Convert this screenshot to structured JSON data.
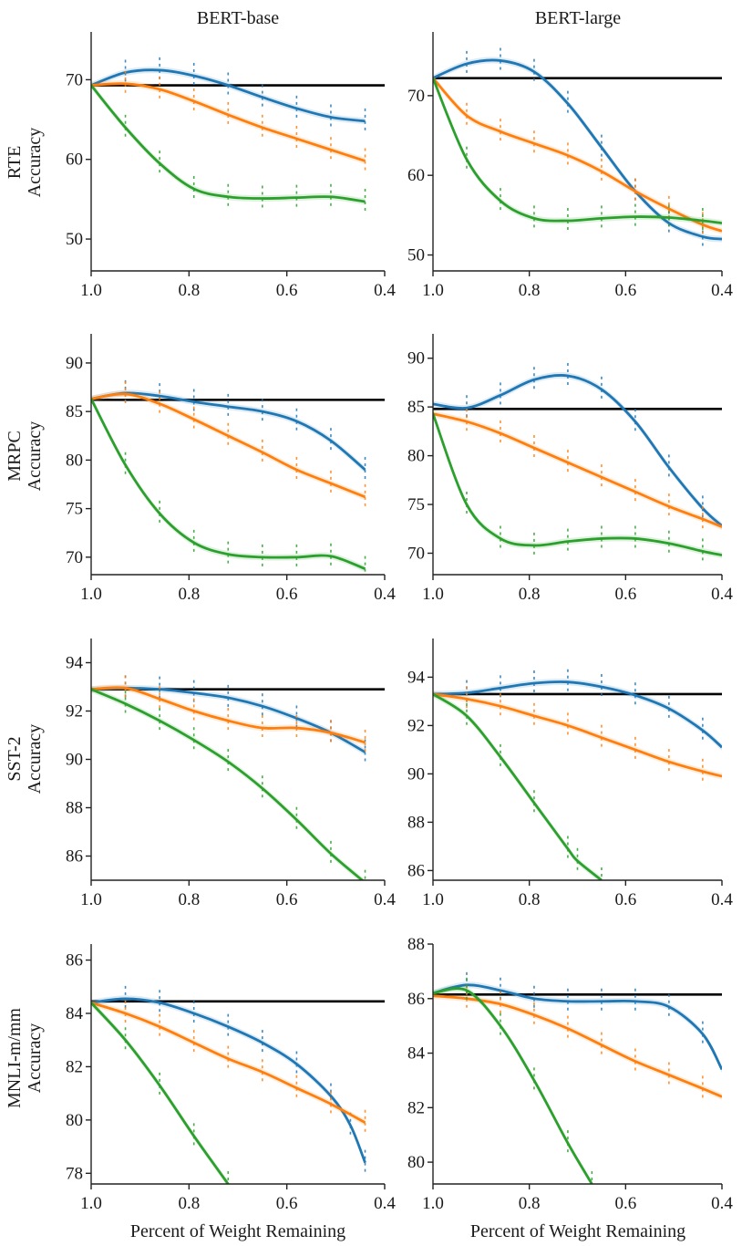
{
  "figure": {
    "col_titles": [
      "BERT-base",
      "BERT-large"
    ],
    "xlabel": "Percent of Weight Remaining",
    "y_suffix": "Accuracy",
    "colors": {
      "blue": "#1f77b4",
      "orange": "#ff7f0e",
      "green": "#2ca02c",
      "baseline": "#000000"
    }
  },
  "chart_data": [
    {
      "type": "line",
      "row": "RTE",
      "model": "BERT-base",
      "xlim": [
        1.0,
        0.4
      ],
      "xticks": [
        1.0,
        0.8,
        0.6,
        0.4
      ],
      "xtick_labels": [
        "1.0",
        "0.8",
        "0.6",
        "0.4"
      ],
      "ylim": [
        46,
        76
      ],
      "yticks": [
        50,
        60,
        70
      ],
      "ytick_labels": [
        "50",
        "60",
        "70"
      ],
      "baseline": 69.3,
      "series": [
        {
          "name": "blue",
          "x": [
            1.0,
            0.93,
            0.86,
            0.79,
            0.72,
            0.65,
            0.58,
            0.51,
            0.44
          ],
          "y": [
            69.3,
            70.9,
            71.2,
            70.5,
            69.3,
            67.8,
            66.4,
            65.3,
            64.8
          ]
        },
        {
          "name": "orange",
          "x": [
            1.0,
            0.93,
            0.86,
            0.79,
            0.72,
            0.65,
            0.58,
            0.51,
            0.44
          ],
          "y": [
            69.3,
            69.5,
            68.8,
            67.3,
            65.6,
            64.0,
            62.6,
            61.2,
            59.8
          ]
        },
        {
          "name": "green",
          "x": [
            1.0,
            0.93,
            0.86,
            0.79,
            0.72,
            0.65,
            0.58,
            0.51,
            0.44
          ],
          "y": [
            69.3,
            64.0,
            59.5,
            56.3,
            55.3,
            55.1,
            55.2,
            55.3,
            54.7
          ]
        }
      ]
    },
    {
      "type": "line",
      "row": "RTE",
      "model": "BERT-large",
      "xlim": [
        1.0,
        0.4
      ],
      "xticks": [
        1.0,
        0.8,
        0.6,
        0.4
      ],
      "xtick_labels": [
        "1.0",
        "0.8",
        "0.6",
        "0.4"
      ],
      "ylim": [
        48,
        78
      ],
      "yticks": [
        50,
        60,
        70
      ],
      "ytick_labels": [
        "50",
        "60",
        "70"
      ],
      "baseline": 72.2,
      "series": [
        {
          "name": "blue",
          "x": [
            1.0,
            0.93,
            0.86,
            0.79,
            0.72,
            0.65,
            0.58,
            0.51,
            0.44,
            0.4
          ],
          "y": [
            72.2,
            74.0,
            74.4,
            73.0,
            69.0,
            63.5,
            58.0,
            54.0,
            52.3,
            52.0
          ]
        },
        {
          "name": "orange",
          "x": [
            1.0,
            0.93,
            0.86,
            0.79,
            0.72,
            0.65,
            0.58,
            0.51,
            0.44,
            0.4
          ],
          "y": [
            72.2,
            67.5,
            65.5,
            64.0,
            62.5,
            60.5,
            58.0,
            55.8,
            53.8,
            53.0
          ]
        },
        {
          "name": "green",
          "x": [
            1.0,
            0.93,
            0.86,
            0.79,
            0.72,
            0.65,
            0.58,
            0.51,
            0.44,
            0.4
          ],
          "y": [
            72.2,
            62.0,
            56.8,
            54.6,
            54.3,
            54.6,
            54.8,
            54.7,
            54.3,
            54.0
          ]
        }
      ]
    },
    {
      "type": "line",
      "row": "MRPC",
      "model": "BERT-base",
      "xlim": [
        1.0,
        0.4
      ],
      "xticks": [
        1.0,
        0.8,
        0.6,
        0.4
      ],
      "xtick_labels": [
        "1.0",
        "0.8",
        "0.6",
        "0.4"
      ],
      "ylim": [
        68.2,
        93
      ],
      "yticks": [
        70,
        75,
        80,
        85,
        90
      ],
      "ytick_labels": [
        "70",
        "75",
        "80",
        "85",
        "90"
      ],
      "baseline": 86.2,
      "series": [
        {
          "name": "blue",
          "x": [
            1.0,
            0.93,
            0.86,
            0.79,
            0.72,
            0.65,
            0.58,
            0.51,
            0.44
          ],
          "y": [
            86.3,
            86.9,
            86.6,
            86.0,
            85.5,
            85.0,
            84.0,
            82.0,
            79.0
          ]
        },
        {
          "name": "orange",
          "x": [
            1.0,
            0.93,
            0.86,
            0.79,
            0.72,
            0.65,
            0.58,
            0.51,
            0.44
          ],
          "y": [
            86.3,
            86.8,
            85.8,
            84.2,
            82.5,
            80.8,
            79.0,
            77.6,
            76.2
          ]
        },
        {
          "name": "green",
          "x": [
            1.0,
            0.93,
            0.86,
            0.79,
            0.72,
            0.65,
            0.58,
            0.51,
            0.44
          ],
          "y": [
            86.3,
            79.5,
            74.5,
            71.5,
            70.3,
            70.0,
            70.0,
            70.1,
            68.8
          ]
        }
      ]
    },
    {
      "type": "line",
      "row": "MRPC",
      "model": "BERT-large",
      "xlim": [
        1.0,
        0.4
      ],
      "xticks": [
        1.0,
        0.8,
        0.6,
        0.4
      ],
      "xtick_labels": [
        "1.0",
        "0.8",
        "0.6",
        "0.4"
      ],
      "ylim": [
        67.8,
        92.5
      ],
      "yticks": [
        70,
        75,
        80,
        85,
        90
      ],
      "ytick_labels": [
        "70",
        "75",
        "80",
        "85",
        "90"
      ],
      "baseline": 84.8,
      "series": [
        {
          "name": "blue",
          "x": [
            1.0,
            0.93,
            0.86,
            0.79,
            0.72,
            0.65,
            0.58,
            0.51,
            0.44,
            0.4
          ],
          "y": [
            85.3,
            84.9,
            86.2,
            87.8,
            88.2,
            86.8,
            83.5,
            78.8,
            74.6,
            72.8
          ]
        },
        {
          "name": "orange",
          "x": [
            1.0,
            0.93,
            0.86,
            0.79,
            0.72,
            0.65,
            0.58,
            0.51,
            0.44,
            0.4
          ],
          "y": [
            84.3,
            83.5,
            82.3,
            80.8,
            79.3,
            77.8,
            76.3,
            74.8,
            73.5,
            72.7
          ]
        },
        {
          "name": "green",
          "x": [
            1.0,
            0.93,
            0.86,
            0.79,
            0.72,
            0.65,
            0.58,
            0.51,
            0.44,
            0.4
          ],
          "y": [
            84.3,
            75.0,
            71.5,
            70.8,
            71.2,
            71.5,
            71.5,
            71.0,
            70.2,
            69.8
          ]
        }
      ]
    },
    {
      "type": "line",
      "row": "SST-2",
      "model": "BERT-base",
      "xlim": [
        1.0,
        0.4
      ],
      "xticks": [
        1.0,
        0.8,
        0.6,
        0.4
      ],
      "xtick_labels": [
        "1.0",
        "0.8",
        "0.6",
        "0.4"
      ],
      "ylim": [
        85.0,
        95.0
      ],
      "yticks": [
        86,
        88,
        90,
        92,
        94
      ],
      "ytick_labels": [
        "86",
        "88",
        "90",
        "92",
        "94"
      ],
      "baseline": 92.9,
      "series": [
        {
          "name": "blue",
          "x": [
            1.0,
            0.93,
            0.86,
            0.79,
            0.72,
            0.65,
            0.58,
            0.51,
            0.44
          ],
          "y": [
            92.9,
            92.95,
            92.9,
            92.75,
            92.55,
            92.2,
            91.7,
            91.1,
            90.3
          ]
        },
        {
          "name": "orange",
          "x": [
            1.0,
            0.93,
            0.86,
            0.79,
            0.72,
            0.65,
            0.58,
            0.51,
            0.44
          ],
          "y": [
            92.9,
            92.95,
            92.5,
            92.0,
            91.6,
            91.3,
            91.3,
            91.1,
            90.7
          ]
        },
        {
          "name": "green",
          "x": [
            1.0,
            0.93,
            0.86,
            0.79,
            0.72,
            0.65,
            0.58,
            0.51,
            0.44
          ],
          "y": [
            92.9,
            92.3,
            91.6,
            90.8,
            89.9,
            88.8,
            87.5,
            86.1,
            84.9
          ]
        }
      ]
    },
    {
      "type": "line",
      "row": "SST-2",
      "model": "BERT-large",
      "xlim": [
        1.0,
        0.4
      ],
      "xticks": [
        1.0,
        0.8,
        0.6,
        0.4
      ],
      "xtick_labels": [
        "1.0",
        "0.8",
        "0.6",
        "0.4"
      ],
      "ylim": [
        85.6,
        95.6
      ],
      "yticks": [
        86,
        88,
        90,
        92,
        94
      ],
      "ytick_labels": [
        "86",
        "88",
        "90",
        "92",
        "94"
      ],
      "baseline": 93.3,
      "series": [
        {
          "name": "blue",
          "x": [
            1.0,
            0.93,
            0.86,
            0.79,
            0.72,
            0.65,
            0.58,
            0.51,
            0.44,
            0.4
          ],
          "y": [
            93.3,
            93.35,
            93.55,
            93.75,
            93.8,
            93.6,
            93.25,
            92.7,
            91.8,
            91.1
          ]
        },
        {
          "name": "orange",
          "x": [
            1.0,
            0.93,
            0.86,
            0.79,
            0.72,
            0.65,
            0.58,
            0.51,
            0.44,
            0.4
          ],
          "y": [
            93.3,
            93.1,
            92.8,
            92.4,
            92.0,
            91.5,
            91.0,
            90.5,
            90.1,
            89.9
          ]
        },
        {
          "name": "green",
          "x": [
            1.0,
            0.93,
            0.86,
            0.79,
            0.72,
            0.7,
            0.65
          ],
          "y": [
            93.3,
            92.4,
            90.7,
            88.8,
            86.9,
            86.4,
            85.6
          ]
        }
      ]
    },
    {
      "type": "line",
      "row": "MNLI-m/mm",
      "model": "BERT-base",
      "xlim": [
        1.0,
        0.4
      ],
      "xticks": [
        1.0,
        0.8,
        0.6,
        0.4
      ],
      "xtick_labels": [
        "1.0",
        "0.8",
        "0.6",
        "0.4"
      ],
      "ylim": [
        77.6,
        86.6
      ],
      "yticks": [
        78,
        80,
        82,
        84,
        86
      ],
      "ytick_labels": [
        "78",
        "80",
        "82",
        "84",
        "86"
      ],
      "baseline": 84.45,
      "series": [
        {
          "name": "blue",
          "x": [
            1.0,
            0.93,
            0.86,
            0.79,
            0.72,
            0.65,
            0.58,
            0.51,
            0.47,
            0.44
          ],
          "y": [
            84.4,
            84.55,
            84.4,
            84.0,
            83.5,
            82.9,
            82.1,
            80.9,
            79.8,
            78.4
          ]
        },
        {
          "name": "orange",
          "x": [
            1.0,
            0.93,
            0.86,
            0.79,
            0.72,
            0.65,
            0.58,
            0.51,
            0.44
          ],
          "y": [
            84.4,
            84.0,
            83.5,
            82.9,
            82.3,
            81.8,
            81.2,
            80.6,
            79.9
          ]
        },
        {
          "name": "green",
          "x": [
            1.0,
            0.93,
            0.86,
            0.79,
            0.72
          ],
          "y": [
            84.4,
            83.0,
            81.3,
            79.4,
            77.6
          ]
        }
      ]
    },
    {
      "type": "line",
      "row": "MNLI-m/mm",
      "model": "BERT-large",
      "xlim": [
        1.0,
        0.4
      ],
      "xticks": [
        1.0,
        0.8,
        0.6,
        0.4
      ],
      "xtick_labels": [
        "1.0",
        "0.8",
        "0.6",
        "0.4"
      ],
      "ylim": [
        79.2,
        88.0
      ],
      "yticks": [
        80,
        82,
        84,
        86,
        88
      ],
      "ytick_labels": [
        "80",
        "82",
        "84",
        "86",
        "88"
      ],
      "baseline": 86.15,
      "series": [
        {
          "name": "blue",
          "x": [
            1.0,
            0.93,
            0.86,
            0.79,
            0.72,
            0.65,
            0.58,
            0.51,
            0.44,
            0.4
          ],
          "y": [
            86.2,
            86.5,
            86.3,
            86.0,
            85.9,
            85.9,
            85.9,
            85.7,
            84.7,
            83.4
          ]
        },
        {
          "name": "orange",
          "x": [
            1.0,
            0.93,
            0.86,
            0.79,
            0.72,
            0.65,
            0.58,
            0.51,
            0.44,
            0.4
          ],
          "y": [
            86.1,
            86.0,
            85.8,
            85.4,
            84.9,
            84.3,
            83.7,
            83.2,
            82.7,
            82.4
          ]
        },
        {
          "name": "green",
          "x": [
            1.0,
            0.93,
            0.86,
            0.79,
            0.72,
            0.67
          ],
          "y": [
            86.2,
            86.3,
            85.0,
            83.0,
            80.7,
            79.2
          ]
        }
      ]
    }
  ]
}
